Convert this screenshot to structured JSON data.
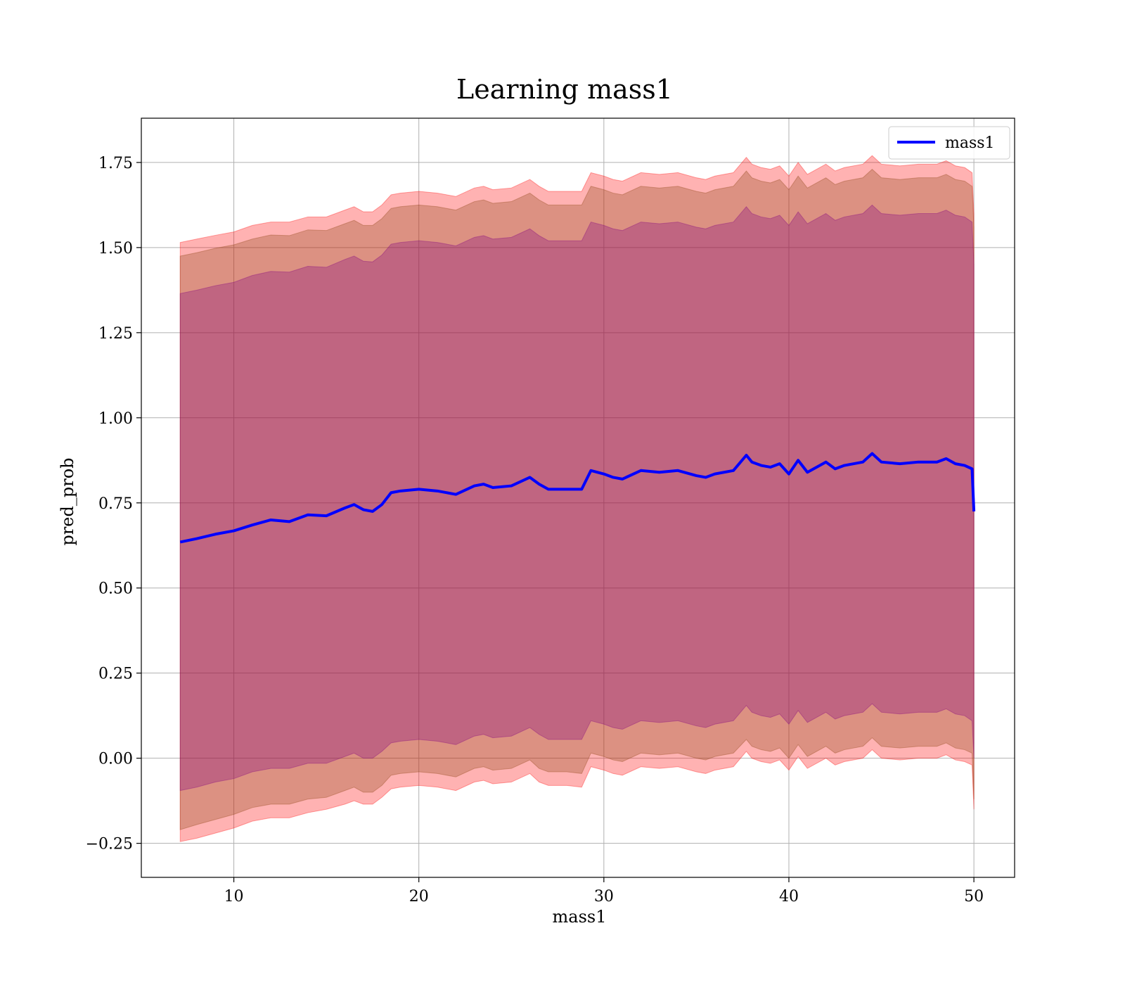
{
  "chart_data": {
    "type": "line",
    "title": "Learning mass1",
    "xlabel": "mass1",
    "ylabel": "pred_prob",
    "xlim": [
      5,
      52.2
    ],
    "ylim": [
      -0.35,
      1.88
    ],
    "xticks": [
      10,
      20,
      30,
      40,
      50
    ],
    "yticks": [
      -0.25,
      0.0,
      0.25,
      0.5,
      0.75,
      1.0,
      1.25,
      1.5,
      1.75
    ],
    "xtick_labels": [
      "10",
      "20",
      "30",
      "40",
      "50"
    ],
    "ytick_labels": [
      "−0.25",
      "0.00",
      "0.25",
      "0.50",
      "0.75",
      "1.00",
      "1.25",
      "1.50",
      "1.75"
    ],
    "grid": true,
    "legend": {
      "position": "top-right",
      "entries": [
        "mass1"
      ]
    },
    "colors": {
      "line": "#0000ff",
      "band": "#ff0000",
      "inner_band": "#8b4513",
      "core_band": "#800080"
    },
    "x": [
      7.1,
      8.0,
      9.0,
      10.0,
      11.0,
      12.0,
      13.0,
      14.0,
      15.0,
      16.0,
      16.5,
      17.0,
      17.5,
      18.0,
      18.5,
      19.0,
      20.0,
      21.0,
      22.0,
      23.0,
      23.5,
      24.0,
      25.0,
      26.0,
      26.5,
      27.0,
      28.0,
      28.8,
      29.3,
      30.0,
      30.5,
      31.0,
      32.0,
      33.0,
      34.0,
      35.0,
      35.5,
      36.0,
      37.0,
      37.7,
      38.0,
      38.5,
      39.0,
      39.5,
      40.0,
      40.5,
      41.0,
      42.0,
      42.5,
      43.0,
      44.0,
      44.5,
      45.0,
      46.0,
      47.0,
      48.0,
      48.5,
      49.0,
      49.5,
      49.9,
      50.0
    ],
    "series": [
      {
        "name": "mass1",
        "values": [
          0.635,
          0.645,
          0.658,
          0.668,
          0.685,
          0.7,
          0.695,
          0.715,
          0.712,
          0.735,
          0.745,
          0.73,
          0.725,
          0.745,
          0.78,
          0.785,
          0.79,
          0.785,
          0.775,
          0.8,
          0.805,
          0.795,
          0.8,
          0.825,
          0.805,
          0.79,
          0.79,
          0.79,
          0.845,
          0.835,
          0.825,
          0.82,
          0.845,
          0.84,
          0.845,
          0.83,
          0.825,
          0.835,
          0.845,
          0.89,
          0.87,
          0.86,
          0.855,
          0.865,
          0.835,
          0.875,
          0.84,
          0.87,
          0.85,
          0.86,
          0.87,
          0.895,
          0.87,
          0.865,
          0.87,
          0.87,
          0.88,
          0.865,
          0.86,
          0.85,
          0.725
        ]
      }
    ],
    "bands": [
      {
        "label": "outer",
        "lower": [
          -0.245,
          -0.235,
          -0.22,
          -0.205,
          -0.185,
          -0.175,
          -0.175,
          -0.16,
          -0.15,
          -0.135,
          -0.125,
          -0.135,
          -0.135,
          -0.115,
          -0.09,
          -0.085,
          -0.08,
          -0.085,
          -0.095,
          -0.07,
          -0.065,
          -0.075,
          -0.07,
          -0.045,
          -0.07,
          -0.08,
          -0.08,
          -0.085,
          -0.025,
          -0.035,
          -0.045,
          -0.05,
          -0.025,
          -0.03,
          -0.025,
          -0.04,
          -0.045,
          -0.035,
          -0.025,
          0.02,
          0.0,
          -0.01,
          -0.015,
          -0.005,
          -0.035,
          0.005,
          -0.03,
          0.0,
          -0.02,
          -0.01,
          0.0,
          0.025,
          0.0,
          -0.005,
          0.0,
          0.0,
          0.01,
          -0.005,
          -0.01,
          -0.02,
          -0.15
        ],
        "upper": [
          1.515,
          1.525,
          1.536,
          1.546,
          1.565,
          1.575,
          1.575,
          1.59,
          1.59,
          1.61,
          1.62,
          1.605,
          1.605,
          1.625,
          1.655,
          1.66,
          1.665,
          1.66,
          1.65,
          1.675,
          1.68,
          1.67,
          1.675,
          1.7,
          1.68,
          1.665,
          1.665,
          1.665,
          1.72,
          1.71,
          1.7,
          1.695,
          1.72,
          1.715,
          1.72,
          1.705,
          1.7,
          1.71,
          1.72,
          1.765,
          1.745,
          1.735,
          1.73,
          1.74,
          1.71,
          1.75,
          1.715,
          1.745,
          1.725,
          1.735,
          1.745,
          1.77,
          1.745,
          1.74,
          1.745,
          1.745,
          1.755,
          1.74,
          1.735,
          1.72,
          1.6
        ]
      },
      {
        "label": "middle",
        "lower": [
          -0.21,
          -0.195,
          -0.18,
          -0.165,
          -0.145,
          -0.135,
          -0.135,
          -0.12,
          -0.115,
          -0.095,
          -0.085,
          -0.1,
          -0.1,
          -0.08,
          -0.05,
          -0.045,
          -0.04,
          -0.045,
          -0.055,
          -0.03,
          -0.025,
          -0.035,
          -0.03,
          -0.005,
          -0.03,
          -0.04,
          -0.04,
          -0.045,
          0.015,
          0.005,
          -0.005,
          -0.01,
          0.015,
          0.01,
          0.015,
          0.0,
          -0.005,
          0.005,
          0.015,
          0.055,
          0.035,
          0.025,
          0.02,
          0.03,
          0.0,
          0.04,
          0.005,
          0.035,
          0.015,
          0.025,
          0.035,
          0.06,
          0.035,
          0.03,
          0.035,
          0.035,
          0.045,
          0.03,
          0.025,
          0.015,
          -0.12
        ],
        "upper": [
          1.475,
          1.485,
          1.498,
          1.508,
          1.525,
          1.537,
          1.535,
          1.552,
          1.55,
          1.57,
          1.58,
          1.565,
          1.565,
          1.585,
          1.615,
          1.62,
          1.625,
          1.62,
          1.61,
          1.635,
          1.64,
          1.63,
          1.635,
          1.66,
          1.64,
          1.625,
          1.625,
          1.625,
          1.68,
          1.67,
          1.66,
          1.655,
          1.68,
          1.675,
          1.68,
          1.665,
          1.66,
          1.67,
          1.68,
          1.725,
          1.705,
          1.695,
          1.69,
          1.7,
          1.67,
          1.71,
          1.675,
          1.705,
          1.685,
          1.695,
          1.705,
          1.73,
          1.705,
          1.7,
          1.705,
          1.705,
          1.715,
          1.7,
          1.695,
          1.68,
          1.56
        ]
      },
      {
        "label": "inner",
        "lower": [
          -0.095,
          -0.085,
          -0.07,
          -0.06,
          -0.04,
          -0.03,
          -0.03,
          -0.015,
          -0.015,
          0.005,
          0.015,
          0.0,
          0.0,
          0.02,
          0.045,
          0.05,
          0.055,
          0.05,
          0.04,
          0.065,
          0.07,
          0.06,
          0.065,
          0.09,
          0.07,
          0.055,
          0.055,
          0.055,
          0.11,
          0.1,
          0.09,
          0.085,
          0.11,
          0.105,
          0.11,
          0.095,
          0.09,
          0.1,
          0.11,
          0.155,
          0.135,
          0.125,
          0.12,
          0.13,
          0.1,
          0.14,
          0.105,
          0.135,
          0.115,
          0.125,
          0.135,
          0.16,
          0.135,
          0.13,
          0.135,
          0.135,
          0.145,
          0.13,
          0.125,
          0.11,
          0.0
        ],
        "upper": [
          1.365,
          1.375,
          1.388,
          1.398,
          1.418,
          1.43,
          1.428,
          1.445,
          1.442,
          1.465,
          1.475,
          1.46,
          1.458,
          1.478,
          1.51,
          1.515,
          1.52,
          1.515,
          1.505,
          1.53,
          1.535,
          1.525,
          1.53,
          1.555,
          1.535,
          1.52,
          1.52,
          1.52,
          1.575,
          1.565,
          1.555,
          1.55,
          1.575,
          1.57,
          1.575,
          1.56,
          1.555,
          1.565,
          1.575,
          1.62,
          1.6,
          1.59,
          1.585,
          1.595,
          1.565,
          1.605,
          1.57,
          1.6,
          1.58,
          1.59,
          1.6,
          1.625,
          1.6,
          1.595,
          1.6,
          1.6,
          1.61,
          1.595,
          1.59,
          1.575,
          1.45
        ]
      }
    ]
  }
}
